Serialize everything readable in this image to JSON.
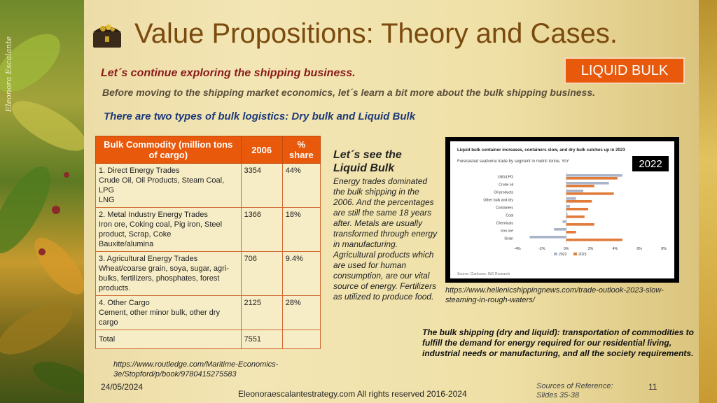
{
  "header": {
    "title": "Value Propositions: Theory and Cases.",
    "subtitle": "Let´s continue exploring the shipping business.",
    "badge": "LIQUID BULK"
  },
  "intro": {
    "line2": "Before moving to the shipping market economics, let´s learn a bit more about the bulk shipping business.",
    "line3": "There are two types of bulk logistics: Dry bulk and Liquid Bulk"
  },
  "left_panel": {
    "signature": "Eleonora Escalante"
  },
  "table": {
    "headers": [
      "Bulk Commodity (million tons of cargo)",
      "2006",
      "% share"
    ],
    "rows": [
      {
        "commodity": "1.      Direct Energy Trades\nCrude Oil, Oil Products, Steam Coal, LPG\nLNG",
        "v2006": "3354",
        "share": "44%"
      },
      {
        "commodity": "2. Metal Industry Energy Trades\nIron ore, Coking coal, Pig iron, Steel product, Scrap, Coke\nBauxite/alumina",
        "v2006": "1366",
        "share": "18%"
      },
      {
        "commodity": "3. Agricultural Energy Trades\nWheat/coarse grain, soya, sugar, agri-bulks, fertilizers, phosphates, forest products.",
        "v2006": "706",
        "share": "9.4%"
      },
      {
        "commodity": "4. Other Cargo\nCement, other minor bulk, other dry cargo",
        "v2006": "2125",
        "share": "28%"
      },
      {
        "commodity": "Total",
        "v2006": "7551",
        "share": ""
      }
    ]
  },
  "reference1": "https://www.routledge.com/Maritime-Economics-3e/Stopford/p/book/9780415275583",
  "date": "24/05/2024",
  "middle": {
    "heading": "Let´s see the Liquid Bulk",
    "text": "Energy trades dominated the bulk shipping in the 2006. And the percentages are still the same 18 years after. Metals are usually transformed through energy in manufacturing. Agricultural products which are used for human consumption, are our vital source of energy. Fertilizers as utilized to produce food."
  },
  "chart_data": {
    "type": "bar",
    "orientation": "horizontal",
    "title": "Liquid bulk container increases, containers slow, and dry bulk catches up in 2023",
    "subtitle": "Forecasted seaborne trade by segment in metric tonne, YoY",
    "categories": [
      "LNG/LPG",
      "Crude oil",
      "Oil products",
      "Other bulk and dry",
      "Containers",
      "Coal",
      "Chemicals",
      "Iron ore",
      "Grain"
    ],
    "series": [
      {
        "name": "2022",
        "color": "#a9b4c8",
        "values": [
          4.6,
          3.5,
          1.4,
          0.8,
          0.3,
          0.1,
          -0.3,
          -1.0,
          -3.0
        ]
      },
      {
        "name": "2023",
        "color": "#e07b39",
        "values": [
          4.2,
          2.3,
          3.9,
          2.1,
          1.8,
          1.5,
          2.3,
          0.8,
          4.6
        ]
      }
    ],
    "xlim": [
      -4,
      8
    ],
    "xticks": [
      "-4%",
      "-2%",
      "0%",
      "2%",
      "4%",
      "6%",
      "8%"
    ],
    "source": "Source: Clarksons, ING Research",
    "legend": "bottom"
  },
  "chart_badge": "2022",
  "reference2": "https://www.hellenicshippingnews.com/trade-outlook-2023-slow-steaming-in-rough-waters/",
  "summary": "The bulk shipping (dry and liquid): transportation of commodities to fulfill the demand for energy required for our residential living, industrial needs or manufacturing, and all the society requirements.",
  "footer": {
    "site": "Eleonoraescalantestrategy.com  All rights reserved 2016-2024",
    "sources": "Sources of Reference:\nSlides 35-38",
    "page": "11"
  }
}
